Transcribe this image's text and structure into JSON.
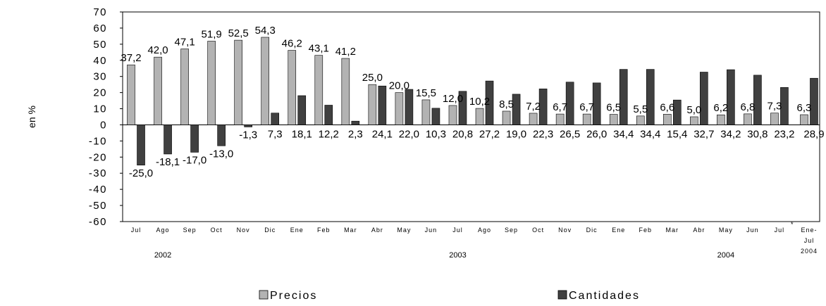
{
  "chart_data": {
    "type": "bar",
    "ylabel": "en %",
    "ylim": [
      -60,
      70
    ],
    "ytick_step": 10,
    "grid": false,
    "legend_position": "bottom",
    "categories": [
      "Jul",
      "Ago",
      "Sep",
      "Oct",
      "Nov",
      "Dic",
      "Ene",
      "Feb",
      "Mar",
      "Abr",
      "May",
      "Jun",
      "Jul",
      "Ago",
      "Sep",
      "Oct",
      "Nov",
      "Dic",
      "Ene",
      "Feb",
      "Mar",
      "Abr",
      "May",
      "Jun",
      "Jul",
      "Ene-Jul 2004"
    ],
    "category_note": "*",
    "year_labels": [
      "2002",
      "2003",
      "2004"
    ],
    "series": [
      {
        "name": "Precios",
        "color": "#b3b3b3",
        "values": [
          37.2,
          42.0,
          47.1,
          51.9,
          52.5,
          54.3,
          46.2,
          43.1,
          41.2,
          25.0,
          20.0,
          15.5,
          12.0,
          10.2,
          8.5,
          7.2,
          6.7,
          6.7,
          6.5,
          5.5,
          6.6,
          5.0,
          6.2,
          6.8,
          7.3,
          6.3
        ],
        "labels": [
          "37,2",
          "42,0",
          "47,1",
          "51,9",
          "52,5",
          "54,3",
          "46,2",
          "43,1",
          "41,2",
          "25,0",
          "20,0",
          "15,5",
          "12,0",
          "10,2",
          "8,5",
          "7,2",
          "6,7",
          "6,7",
          "6,5",
          "5,5",
          "6,6",
          "5,0",
          "6,2",
          "6,8",
          "7,3",
          "6,3"
        ]
      },
      {
        "name": "Cantidades",
        "color": "#404040",
        "values": [
          -25.0,
          -18.1,
          -17.0,
          -13.0,
          -1.3,
          7.3,
          18.1,
          12.2,
          2.3,
          24.1,
          22.0,
          10.3,
          20.8,
          27.2,
          19.0,
          22.3,
          26.5,
          26.0,
          34.4,
          34.4,
          15.4,
          32.7,
          34.2,
          30.8,
          23.2,
          28.9
        ],
        "labels": [
          "-25,0",
          "-18,1",
          "-17,0",
          "-13,0",
          "-1,3",
          "7,3",
          "18,1",
          "12,2",
          "2,3",
          "24,1",
          "22,0",
          "10,3",
          "20,8",
          "27,2",
          "19,0",
          "22,3",
          "26,5",
          "26,0",
          "34,4",
          "34,4",
          "15,4",
          "32,7",
          "34,2",
          "30,8",
          "23,2",
          "28,9"
        ]
      }
    ]
  }
}
